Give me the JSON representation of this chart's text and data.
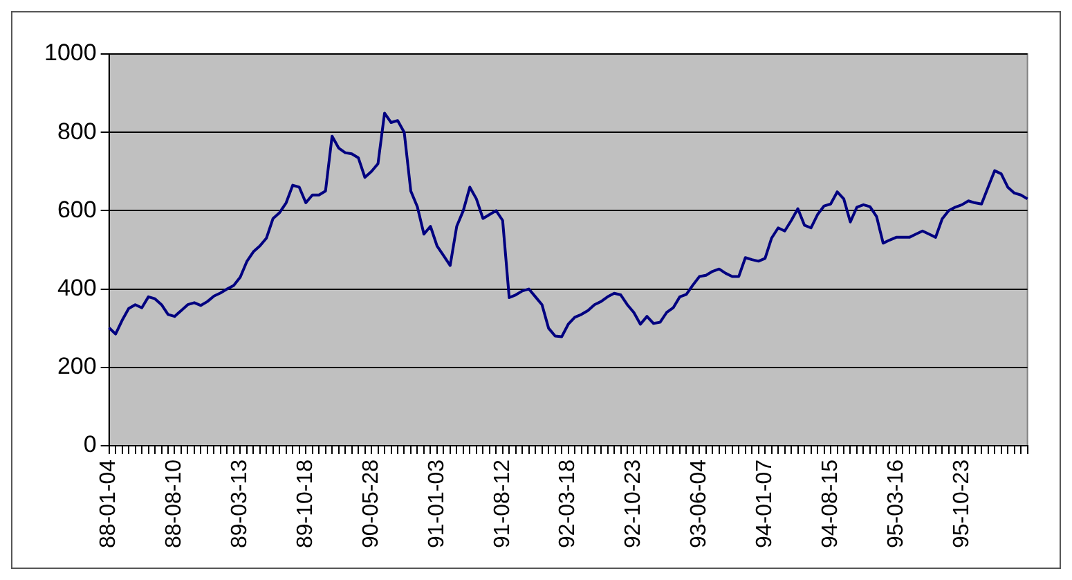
{
  "chart_data": {
    "type": "line",
    "categories": [
      "88-01-04",
      null,
      null,
      null,
      null,
      null,
      null,
      null,
      null,
      null,
      "88-08-10",
      null,
      null,
      null,
      null,
      null,
      null,
      null,
      null,
      null,
      "89-03-13",
      null,
      null,
      null,
      null,
      null,
      null,
      null,
      null,
      null,
      "89-10-18",
      null,
      null,
      null,
      null,
      null,
      null,
      null,
      null,
      null,
      "90-05-28",
      null,
      null,
      null,
      null,
      null,
      null,
      null,
      null,
      null,
      "91-01-03",
      null,
      null,
      null,
      null,
      null,
      null,
      null,
      null,
      null,
      "91-08-12",
      null,
      null,
      null,
      null,
      null,
      null,
      null,
      null,
      null,
      "92-03-18",
      null,
      null,
      null,
      null,
      null,
      null,
      null,
      null,
      null,
      "92-10-23",
      null,
      null,
      null,
      null,
      null,
      null,
      null,
      null,
      null,
      "93-06-04",
      null,
      null,
      null,
      null,
      null,
      null,
      null,
      null,
      null,
      "94-01-07",
      null,
      null,
      null,
      null,
      null,
      null,
      null,
      null,
      null,
      "94-08-15",
      null,
      null,
      null,
      null,
      null,
      null,
      null,
      null,
      null,
      "95-03-16",
      null,
      null,
      null,
      null,
      null,
      null,
      null,
      null,
      null,
      "95-10-23",
      null,
      null,
      null,
      null,
      null,
      null,
      null,
      null,
      null,
      null
    ],
    "series": [
      {
        "color": "#000080",
        "values": [
          301,
          285,
          320,
          350,
          360,
          352,
          380,
          375,
          360,
          335,
          330,
          345,
          360,
          365,
          358,
          368,
          382,
          390,
          400,
          409,
          430,
          470,
          495,
          510,
          530,
          580,
          595,
          620,
          665,
          660,
          620,
          640,
          640,
          650,
          790,
          760,
          748,
          745,
          735,
          685,
          700,
          720,
          849,
          825,
          830,
          800,
          650,
          610,
          540,
          560,
          510,
          485,
          460,
          560,
          600,
          660,
          630,
          580,
          590,
          600,
          575,
          378,
          385,
          395,
          400,
          380,
          360,
          300,
          280,
          278,
          310,
          328,
          335,
          345,
          360,
          368,
          380,
          389,
          385,
          360,
          340,
          310,
          330,
          312,
          315,
          340,
          352,
          380,
          386,
          410,
          432,
          435,
          445,
          451,
          440,
          432,
          432,
          480,
          475,
          471,
          478,
          530,
          556,
          548,
          575,
          605,
          563,
          556,
          590,
          612,
          617,
          648,
          630,
          571,
          609,
          615,
          610,
          585,
          517,
          525,
          532,
          532,
          532,
          540,
          548,
          540,
          532,
          579,
          600,
          609,
          615,
          625,
          620,
          617,
          660,
          702,
          694,
          660,
          645,
          640,
          630
        ]
      }
    ],
    "ylim": [
      0,
      1000
    ],
    "yticks": [
      0,
      200,
      400,
      600,
      800,
      1000
    ],
    "grid": "y",
    "legend": false,
    "marker": "none",
    "line_style": "solid"
  }
}
